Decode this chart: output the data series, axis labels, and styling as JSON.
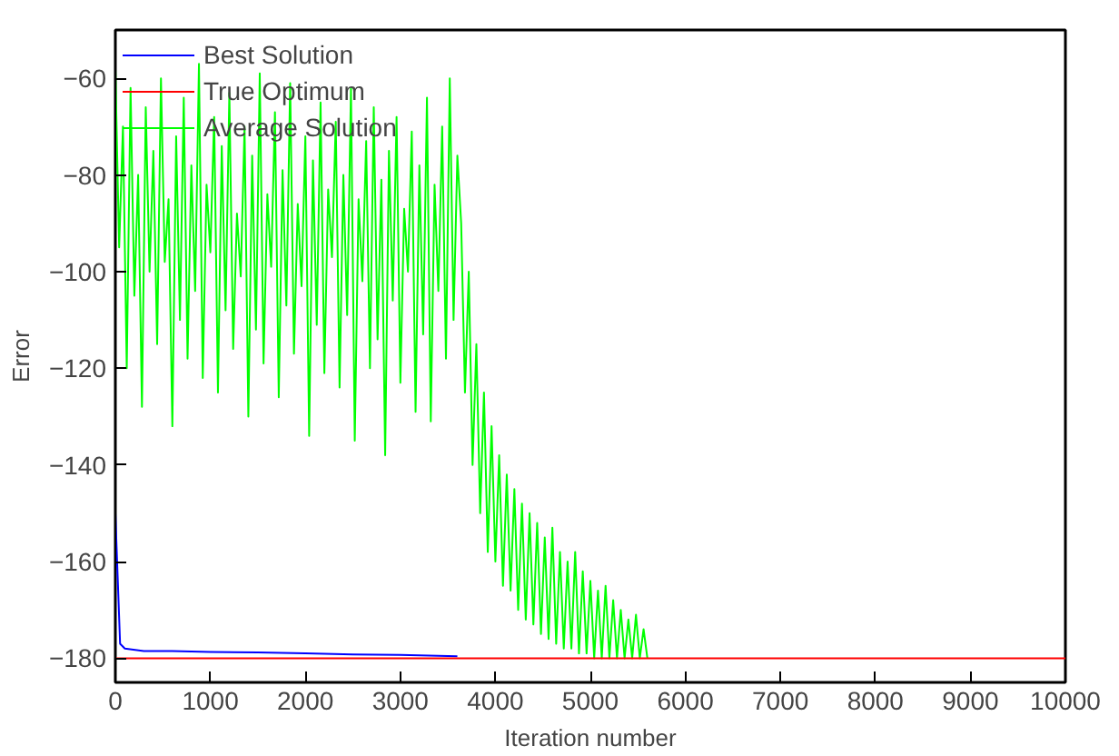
{
  "chart_data": {
    "type": "line",
    "xlabel": "Iteration number",
    "ylabel": "Error",
    "xlim": [
      0,
      10000
    ],
    "ylim": [
      -185,
      -50
    ],
    "xticks": [
      0,
      1000,
      2000,
      3000,
      4000,
      5000,
      6000,
      7000,
      8000,
      9000,
      10000
    ],
    "yticks": [
      -180,
      -160,
      -140,
      -120,
      -100,
      -80,
      -60
    ],
    "grid": false,
    "legend": "top left",
    "line_style": "solid",
    "series": [
      {
        "name": "Best Solution",
        "color": "#0000ff",
        "x": [
          0,
          50,
          100,
          300,
          600,
          1000,
          1500,
          2000,
          2500,
          3000,
          3600
        ],
        "values": [
          -150,
          -177,
          -178,
          -178.5,
          -178.5,
          -178.7,
          -178.8,
          -179,
          -179.2,
          -179.3,
          -179.6
        ]
      },
      {
        "name": "True Optimum",
        "color": "#ff0000",
        "x": [
          0,
          10000
        ],
        "values": [
          -180,
          -180
        ]
      },
      {
        "name": "Average Solution",
        "color": "#00ff00",
        "x": [
          0,
          40,
          80,
          120,
          160,
          200,
          240,
          280,
          320,
          360,
          400,
          440,
          480,
          520,
          560,
          600,
          640,
          680,
          720,
          760,
          800,
          840,
          880,
          920,
          960,
          1000,
          1040,
          1080,
          1120,
          1160,
          1200,
          1240,
          1280,
          1320,
          1360,
          1400,
          1440,
          1480,
          1520,
          1560,
          1600,
          1640,
          1680,
          1720,
          1760,
          1800,
          1840,
          1880,
          1920,
          1960,
          2000,
          2040,
          2080,
          2120,
          2160,
          2200,
          2240,
          2280,
          2320,
          2360,
          2400,
          2440,
          2480,
          2520,
          2560,
          2600,
          2640,
          2680,
          2720,
          2760,
          2800,
          2840,
          2880,
          2920,
          2960,
          3000,
          3040,
          3080,
          3120,
          3160,
          3200,
          3240,
          3280,
          3320,
          3360,
          3400,
          3440,
          3480,
          3520,
          3560,
          3600,
          3640,
          3680,
          3720,
          3760,
          3800,
          3840,
          3880,
          3920,
          3960,
          4000,
          4040,
          4080,
          4120,
          4160,
          4200,
          4240,
          4280,
          4320,
          4360,
          4400,
          4440,
          4480,
          4520,
          4560,
          4600,
          4640,
          4680,
          4720,
          4760,
          4800,
          4840,
          4880,
          4920,
          4960,
          5000,
          5040,
          5080,
          5120,
          5160,
          5200,
          5240,
          5280,
          5320,
          5360,
          5400,
          5440,
          5480,
          5520,
          5560,
          5600
        ],
        "values": [
          -58,
          -95,
          -70,
          -120,
          -62,
          -105,
          -80,
          -128,
          -66,
          -100,
          -75,
          -115,
          -60,
          -98,
          -85,
          -132,
          -72,
          -110,
          -64,
          -118,
          -78,
          -104,
          -57,
          -122,
          -82,
          -96,
          -68,
          -125,
          -74,
          -108,
          -63,
          -116,
          -88,
          -101,
          -70,
          -130,
          -76,
          -112,
          -59,
          -119,
          -84,
          -99,
          -67,
          -126,
          -79,
          -107,
          -61,
          -117,
          -86,
          -103,
          -72,
          -134,
          -77,
          -111,
          -65,
          -121,
          -83,
          -97,
          -69,
          -124,
          -80,
          -109,
          -62,
          -135,
          -85,
          -102,
          -73,
          -120,
          -66,
          -114,
          -81,
          -138,
          -75,
          -106,
          -68,
          -123,
          -87,
          -100,
          -71,
          -129,
          -78,
          -113,
          -64,
          -131,
          -82,
          -104,
          -70,
          -118,
          -60,
          -110,
          -76,
          -90,
          -125,
          -100,
          -140,
          -115,
          -150,
          -125,
          -158,
          -132,
          -160,
          -138,
          -165,
          -142,
          -166,
          -145,
          -170,
          -148,
          -172,
          -150,
          -173,
          -152,
          -175,
          -155,
          -176,
          -153,
          -177,
          -158,
          -178,
          -160,
          -178,
          -158,
          -179,
          -162,
          -179,
          -164,
          -180,
          -166,
          -180,
          -165,
          -180,
          -168,
          -180,
          -170,
          -180,
          -172,
          -180,
          -171,
          -180,
          -174,
          -180
        ]
      }
    ]
  }
}
